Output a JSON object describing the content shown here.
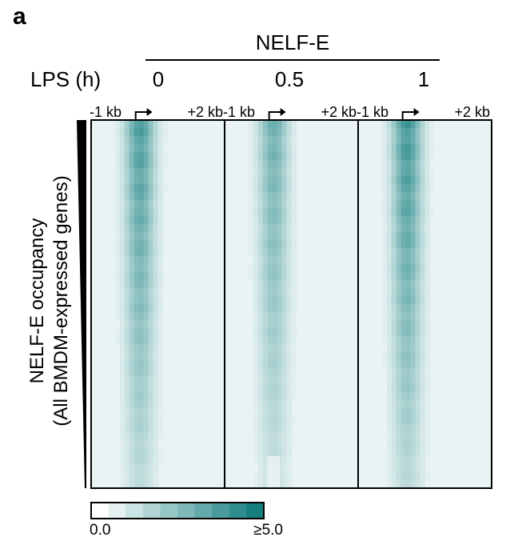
{
  "figure": {
    "panel_label": "a",
    "protein": "NELF-E",
    "condition_label": "LPS (h)",
    "ylabel_line1": "NELF-E occupancy",
    "ylabel_line2": "(All BMDM-expressed genes)"
  },
  "chart_data": {
    "type": "heatmap",
    "title": "NELF-E",
    "panels": [
      {
        "timepoint": "0",
        "peak_intensity": 4.2,
        "peak_offset_kb": 0.1
      },
      {
        "timepoint": "0.5",
        "peak_intensity": 3.3,
        "peak_offset_kb": 0.1
      },
      {
        "timepoint": "1",
        "peak_intensity": 4.5,
        "peak_offset_kb": 0.1
      }
    ],
    "xrange_kb": [
      -1,
      2
    ],
    "tick_labels": {
      "left": "-1 kb",
      "right": "+2 kb"
    },
    "rows": "genes sorted by NELF-E occupancy (descending)",
    "colorbar": {
      "min_label": "0.0",
      "max_label": "≥5.0",
      "range": [
        0,
        5
      ],
      "colors": [
        "#ffffff",
        "#167f7f"
      ],
      "steps": 10
    },
    "colors": {
      "low": "#ffffff",
      "high": "#167f7f",
      "background": "#e9f4f4"
    }
  }
}
